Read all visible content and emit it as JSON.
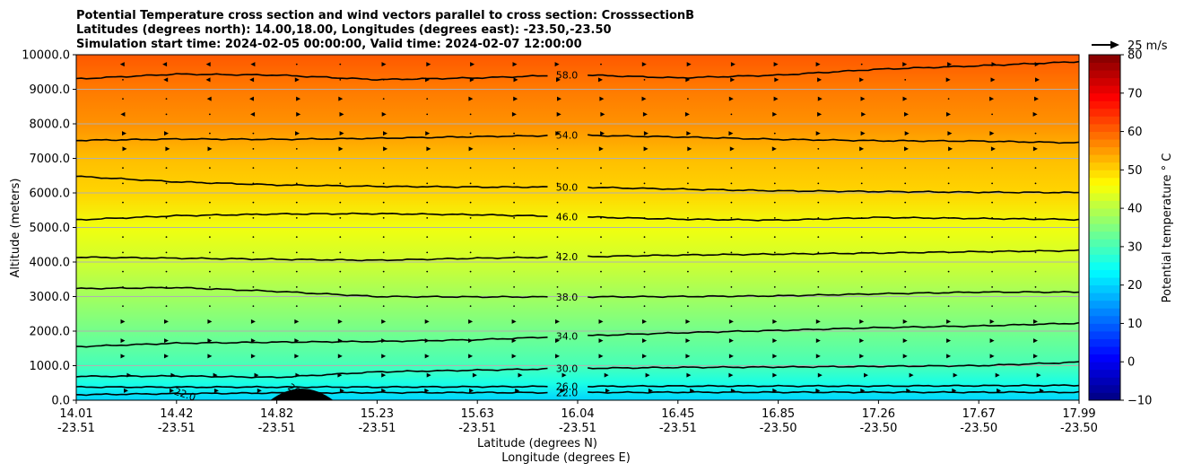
{
  "chart_data": {
    "type": "heatmap",
    "title_lines": [
      "Potential Temperature cross section and wind vectors parallel to cross section: CrosssectionB",
      "Latitudes (degrees north): 14.00,18.00, Longitudes (degrees east): -23.50,-23.50",
      "Simulation start time: 2024-02-05 00:00:00, Valid time: 2024-02-07 12:00:00"
    ],
    "xlabel": "Latitude (degrees N)",
    "xlabel2": "Longitude (degrees E)",
    "ylabel": "Altitude (meters)",
    "x_ticks": [
      {
        "lat": "14.01",
        "lon": "-23.51"
      },
      {
        "lat": "14.42",
        "lon": "-23.51"
      },
      {
        "lat": "14.82",
        "lon": "-23.51"
      },
      {
        "lat": "15.23",
        "lon": "-23.51"
      },
      {
        "lat": "15.63",
        "lon": "-23.51"
      },
      {
        "lat": "16.04",
        "lon": "-23.51"
      },
      {
        "lat": "16.45",
        "lon": "-23.51"
      },
      {
        "lat": "16.85",
        "lon": "-23.50"
      },
      {
        "lat": "17.26",
        "lon": "-23.50"
      },
      {
        "lat": "17.67",
        "lon": "-23.50"
      },
      {
        "lat": "17.99",
        "lon": "-23.50"
      }
    ],
    "y_ticks": [
      "0.0",
      "1000.0",
      "2000.0",
      "3000.0",
      "4000.0",
      "5000.0",
      "6000.0",
      "7000.0",
      "8000.0",
      "9000.0",
      "10000.0"
    ],
    "ylim": [
      0,
      10000
    ],
    "grid": "horizontal",
    "colorbar": {
      "label": "Potential temperature ° C",
      "ticks": [
        "−10",
        "0",
        "10",
        "20",
        "30",
        "40",
        "50",
        "60",
        "70",
        "80"
      ],
      "range": [
        -10,
        80
      ],
      "colormap": "jet"
    },
    "quiver_key": "25 m/s",
    "contours": [
      {
        "value": 22,
        "label": "22.0",
        "altitudes": [
          160,
          190,
          210,
          220,
          220,
          220,
          230,
          230,
          230,
          230,
          230
        ]
      },
      {
        "value": 26,
        "label": "26.0",
        "altitudes": [
          380,
          380,
          380,
          380,
          390,
          400,
          410,
          410,
          410,
          420,
          430
        ]
      },
      {
        "value": 30,
        "label": "30.0",
        "altitudes": [
          690,
          700,
          660,
          820,
          870,
          920,
          950,
          960,
          980,
          1000,
          1100
        ]
      },
      {
        "value": 34,
        "label": "34.0",
        "altitudes": [
          1550,
          1650,
          1680,
          1700,
          1750,
          1860,
          1950,
          2020,
          2100,
          2150,
          2230
        ]
      },
      {
        "value": 38,
        "label": "38.0",
        "altitudes": [
          3230,
          3260,
          3150,
          3000,
          2990,
          2990,
          3000,
          3020,
          3080,
          3130,
          3130
        ]
      },
      {
        "value": 42,
        "label": "42.0",
        "altitudes": [
          4140,
          4110,
          4080,
          4050,
          4110,
          4150,
          4200,
          4230,
          4260,
          4300,
          4330
        ]
      },
      {
        "value": 46,
        "label": "46.0",
        "altitudes": [
          5220,
          5340,
          5390,
          5400,
          5370,
          5310,
          5240,
          5210,
          5290,
          5260,
          5230
        ]
      },
      {
        "value": 50,
        "label": "50.0",
        "altitudes": [
          6480,
          6320,
          6230,
          6190,
          6170,
          6170,
          6110,
          6060,
          6040,
          6020,
          6010
        ]
      },
      {
        "value": 54,
        "label": "54.0",
        "altitudes": [
          7520,
          7560,
          7550,
          7580,
          7630,
          7670,
          7620,
          7550,
          7510,
          7500,
          7450
        ]
      },
      {
        "value": 58,
        "label": "58.0",
        "altitudes": [
          9300,
          9440,
          9410,
          9280,
          9330,
          9420,
          9330,
          9410,
          9580,
          9680,
          9800
        ]
      }
    ],
    "temperature_profile": [
      {
        "altitude": 0,
        "value": 20
      },
      {
        "altitude": 500,
        "value": 26
      },
      {
        "altitude": 1000,
        "value": 30
      },
      {
        "altitude": 2000,
        "value": 34
      },
      {
        "altitude": 3000,
        "value": 38
      },
      {
        "altitude": 4000,
        "value": 42
      },
      {
        "altitude": 5000,
        "value": 45
      },
      {
        "altitude": 6000,
        "value": 50
      },
      {
        "altitude": 7000,
        "value": 52
      },
      {
        "altitude": 8000,
        "value": 56
      },
      {
        "altitude": 9000,
        "value": 58
      },
      {
        "altitude": 10000,
        "value": 61
      }
    ],
    "terrain": {
      "x_start": 14.78,
      "x_end": 15.03,
      "peak_altitude": 200
    }
  }
}
